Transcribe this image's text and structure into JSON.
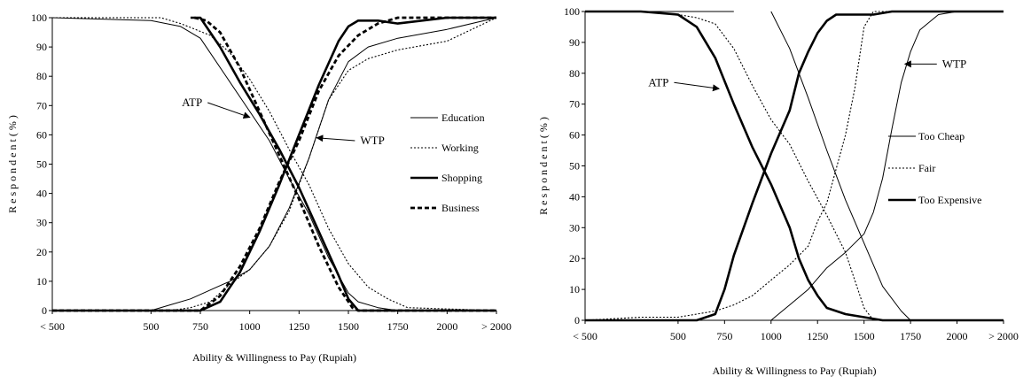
{
  "chart_data": [
    {
      "type": "line",
      "title": "",
      "xlabel": "Ability & Willingness to Pay (Rupiah)",
      "ylabel": "R e s p o n d e n t  ( % )",
      "xlim": [
        0,
        2250
      ],
      "ylim": [
        0,
        100
      ],
      "x_ticks": [
        {
          "x": 0,
          "label": "< 500"
        },
        {
          "x": 500,
          "label": "500"
        },
        {
          "x": 750,
          "label": "750"
        },
        {
          "x": 1000,
          "label": "1000"
        },
        {
          "x": 1250,
          "label": "1250"
        },
        {
          "x": 1500,
          "label": "1500"
        },
        {
          "x": 1750,
          "label": "1750"
        },
        {
          "x": 2000,
          "label": "2000"
        },
        {
          "x": 2250,
          "label": "> 2000"
        }
      ],
      "y_ticks": [
        0,
        10,
        20,
        30,
        40,
        50,
        60,
        70,
        80,
        90,
        100
      ],
      "grid": false,
      "legend_position": "right",
      "annotations": [
        {
          "text": "ATP",
          "x": 760,
          "y": 71,
          "arrow_to_x": 1000,
          "arrow_to_y": 66
        },
        {
          "text": "WTP",
          "x": 1560,
          "y": 58,
          "arrow_to_x": 1340,
          "arrow_to_y": 59
        }
      ],
      "series": [
        {
          "name": "Education",
          "style": "solid-thin",
          "curves": [
            [
              [
                0,
                100
              ],
              [
                500,
                99
              ],
              [
                650,
                97
              ],
              [
                750,
                93
              ],
              [
                800,
                88
              ],
              [
                900,
                78
              ],
              [
                1000,
                68
              ],
              [
                1100,
                58
              ],
              [
                1200,
                45
              ],
              [
                1300,
                33
              ],
              [
                1400,
                18
              ],
              [
                1500,
                6
              ],
              [
                1550,
                3
              ],
              [
                1650,
                1
              ],
              [
                1750,
                0
              ],
              [
                2250,
                0
              ]
            ],
            [
              [
                0,
                0
              ],
              [
                500,
                0
              ],
              [
                600,
                2
              ],
              [
                700,
                4
              ],
              [
                800,
                7
              ],
              [
                900,
                10
              ],
              [
                1000,
                14
              ],
              [
                1100,
                22
              ],
              [
                1200,
                35
              ],
              [
                1300,
                52
              ],
              [
                1400,
                72
              ],
              [
                1500,
                85
              ],
              [
                1600,
                90
              ],
              [
                1750,
                93
              ],
              [
                2000,
                96
              ],
              [
                2250,
                100
              ]
            ]
          ]
        },
        {
          "name": "Working",
          "style": "dotted-thin",
          "curves": [
            [
              [
                0,
                100
              ],
              [
                550,
                100
              ],
              [
                650,
                98
              ],
              [
                800,
                94
              ],
              [
                900,
                88
              ],
              [
                1000,
                79
              ],
              [
                1100,
                68
              ],
              [
                1200,
                55
              ],
              [
                1300,
                43
              ],
              [
                1400,
                28
              ],
              [
                1500,
                16
              ],
              [
                1600,
                8
              ],
              [
                1700,
                4
              ],
              [
                1800,
                1
              ],
              [
                2250,
                0
              ]
            ],
            [
              [
                0,
                0
              ],
              [
                600,
                0
              ],
              [
                700,
                1
              ],
              [
                800,
                3
              ],
              [
                900,
                9
              ],
              [
                1000,
                14
              ],
              [
                1100,
                22
              ],
              [
                1200,
                34
              ],
              [
                1300,
                52
              ],
              [
                1400,
                72
              ],
              [
                1500,
                82
              ],
              [
                1600,
                86
              ],
              [
                1750,
                89
              ],
              [
                2000,
                92
              ],
              [
                2250,
                100
              ]
            ]
          ]
        },
        {
          "name": "Shopping",
          "style": "solid-thick",
          "curves": [
            [
              [
                700,
                100
              ],
              [
                750,
                100
              ],
              [
                850,
                90
              ],
              [
                950,
                78
              ],
              [
                1050,
                67
              ],
              [
                1150,
                55
              ],
              [
                1250,
                42
              ],
              [
                1350,
                27
              ],
              [
                1450,
                12
              ],
              [
                1500,
                4
              ],
              [
                1550,
                0
              ],
              [
                2250,
                0
              ]
            ],
            [
              [
                0,
                0
              ],
              [
                750,
                0
              ],
              [
                850,
                3
              ],
              [
                950,
                13
              ],
              [
                1050,
                27
              ],
              [
                1150,
                43
              ],
              [
                1250,
                60
              ],
              [
                1350,
                77
              ],
              [
                1450,
                92
              ],
              [
                1500,
                97
              ],
              [
                1550,
                99
              ],
              [
                1650,
                99
              ],
              [
                1750,
                98
              ],
              [
                2000,
                100
              ],
              [
                2250,
                100
              ]
            ]
          ]
        },
        {
          "name": "Business",
          "style": "dashed-thick",
          "curves": [
            [
              [
                720,
                100
              ],
              [
                780,
                99
              ],
              [
                850,
                95
              ],
              [
                950,
                83
              ],
              [
                1050,
                68
              ],
              [
                1150,
                53
              ],
              [
                1250,
                38
              ],
              [
                1350,
                22
              ],
              [
                1450,
                8
              ],
              [
                1520,
                1
              ],
              [
                1550,
                0
              ],
              [
                2250,
                0
              ]
            ],
            [
              [
                0,
                0
              ],
              [
                750,
                0
              ],
              [
                850,
                5
              ],
              [
                950,
                15
              ],
              [
                1050,
                28
              ],
              [
                1150,
                44
              ],
              [
                1250,
                58
              ],
              [
                1350,
                75
              ],
              [
                1450,
                87
              ],
              [
                1550,
                94
              ],
              [
                1650,
                98
              ],
              [
                1750,
                100
              ],
              [
                2250,
                100
              ]
            ]
          ]
        }
      ]
    },
    {
      "type": "line",
      "title": "",
      "xlabel": "Ability & Willingness to Pay (Rupiah)",
      "ylabel": "R e s p o n d e n t  ( % )",
      "xlim": [
        0,
        2250
      ],
      "ylim": [
        0,
        100
      ],
      "x_ticks": [
        {
          "x": 0,
          "label": "< 500"
        },
        {
          "x": 500,
          "label": "500"
        },
        {
          "x": 750,
          "label": "750"
        },
        {
          "x": 1000,
          "label": "1000"
        },
        {
          "x": 1250,
          "label": "1250"
        },
        {
          "x": 1500,
          "label": "1500"
        },
        {
          "x": 1750,
          "label": "1750"
        },
        {
          "x": 2000,
          "label": "2000"
        },
        {
          "x": 2250,
          "label": "> 2000"
        }
      ],
      "y_ticks": [
        0,
        10,
        20,
        30,
        40,
        50,
        60,
        70,
        80,
        90,
        100
      ],
      "grid": false,
      "legend_position": "right",
      "annotations": [
        {
          "text": "ATP",
          "x": 450,
          "y": 77,
          "arrow_to_x": 720,
          "arrow_to_y": 75
        },
        {
          "text": "WTP",
          "x": 1920,
          "y": 83,
          "arrow_to_x": 1720,
          "arrow_to_y": 83
        }
      ],
      "series": [
        {
          "name": "Too Cheap",
          "style": "solid-thin",
          "curves": [
            [
              [
                0,
                100
              ],
              [
                800,
                100
              ]
            ],
            [
              [
                1000,
                100
              ],
              [
                1100,
                88
              ],
              [
                1200,
                72
              ],
              [
                1300,
                55
              ],
              [
                1400,
                39
              ],
              [
                1500,
                25
              ],
              [
                1600,
                11
              ],
              [
                1700,
                3
              ],
              [
                1750,
                0
              ],
              [
                2250,
                0
              ]
            ],
            [
              [
                1000,
                0
              ],
              [
                1100,
                5
              ],
              [
                1200,
                10
              ],
              [
                1300,
                17
              ],
              [
                1400,
                22
              ],
              [
                1500,
                28
              ],
              [
                1550,
                35
              ],
              [
                1600,
                46
              ],
              [
                1650,
                62
              ],
              [
                1700,
                77
              ],
              [
                1750,
                87
              ],
              [
                1800,
                94
              ],
              [
                1900,
                99
              ],
              [
                2000,
                100
              ],
              [
                2250,
                100
              ]
            ]
          ]
        },
        {
          "name": "Fair",
          "style": "dotted-thin",
          "curves": [
            [
              [
                0,
                100
              ],
              [
                300,
                100
              ],
              [
                500,
                99
              ],
              [
                600,
                98
              ],
              [
                700,
                96
              ],
              [
                800,
                88
              ],
              [
                900,
                76
              ],
              [
                1000,
                65
              ],
              [
                1100,
                57
              ],
              [
                1200,
                45
              ],
              [
                1300,
                34
              ],
              [
                1400,
                22
              ],
              [
                1500,
                4
              ],
              [
                1550,
                0
              ],
              [
                2250,
                0
              ]
            ],
            [
              [
                0,
                0
              ],
              [
                300,
                1
              ],
              [
                500,
                1
              ],
              [
                600,
                2
              ],
              [
                700,
                3
              ],
              [
                800,
                5
              ],
              [
                900,
                8
              ],
              [
                1000,
                13
              ],
              [
                1100,
                18
              ],
              [
                1200,
                24
              ],
              [
                1250,
                32
              ],
              [
                1300,
                38
              ],
              [
                1400,
                60
              ],
              [
                1450,
                75
              ],
              [
                1500,
                95
              ],
              [
                1550,
                100
              ],
              [
                2250,
                100
              ]
            ]
          ]
        },
        {
          "name": "Too Expensive",
          "style": "solid-thick",
          "curves": [
            [
              [
                0,
                100
              ],
              [
                300,
                100
              ],
              [
                500,
                99
              ],
              [
                600,
                95
              ],
              [
                700,
                85
              ],
              [
                800,
                70
              ],
              [
                900,
                56
              ],
              [
                1000,
                44
              ],
              [
                1100,
                30
              ],
              [
                1150,
                20
              ],
              [
                1200,
                13
              ],
              [
                1250,
                8
              ],
              [
                1300,
                4
              ],
              [
                1400,
                2
              ],
              [
                1500,
                1
              ],
              [
                1600,
                0
              ],
              [
                2250,
                0
              ]
            ],
            [
              [
                0,
                0
              ],
              [
                600,
                0
              ],
              [
                700,
                2
              ],
              [
                750,
                10
              ],
              [
                800,
                21
              ],
              [
                900,
                38
              ],
              [
                1000,
                54
              ],
              [
                1100,
                68
              ],
              [
                1150,
                80
              ],
              [
                1200,
                87
              ],
              [
                1250,
                93
              ],
              [
                1300,
                97
              ],
              [
                1350,
                99
              ],
              [
                1550,
                99
              ],
              [
                1650,
                100
              ],
              [
                2250,
                100
              ]
            ]
          ]
        }
      ]
    }
  ]
}
